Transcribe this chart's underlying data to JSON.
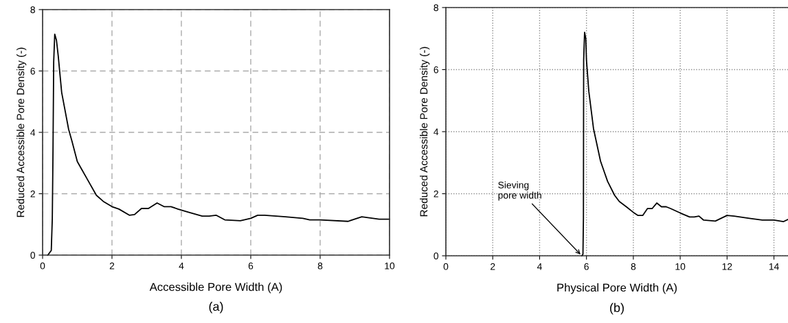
{
  "chart_data": [
    {
      "type": "line",
      "title": "(a)",
      "xlabel": "Accessible Pore Width (A)",
      "ylabel": "Reduced Accessible Pore Density (-)",
      "xlim": [
        0,
        10
      ],
      "xticks": [
        0,
        2,
        4,
        6,
        8,
        10
      ],
      "ylim": [
        0,
        8
      ],
      "yticks": [
        0,
        2,
        4,
        6,
        8
      ],
      "grid": true,
      "line_style": "solid",
      "marker": "none",
      "series": [
        {
          "color": "#000000",
          "x": [
            0.15,
            0.25,
            0.28,
            0.3,
            0.32,
            0.35,
            0.4,
            0.45,
            0.55,
            0.75,
            0.85,
            1.0,
            1.1,
            1.3,
            1.55,
            1.75,
            2.0,
            2.2,
            2.5,
            2.65,
            2.85,
            3.05,
            3.3,
            3.5,
            3.7,
            3.9,
            4.2,
            4.6,
            4.8,
            5.0,
            5.25,
            5.7,
            6.0,
            6.2,
            6.4,
            7.0,
            7.5,
            7.7,
            8.0,
            8.8,
            9.2,
            9.7,
            10.0
          ],
          "values": [
            0,
            0.15,
            1.2,
            3.4,
            6.3,
            7.2,
            7.0,
            6.5,
            5.3,
            4.1,
            3.7,
            3.05,
            2.85,
            2.45,
            1.95,
            1.75,
            1.58,
            1.5,
            1.3,
            1.32,
            1.52,
            1.52,
            1.7,
            1.58,
            1.58,
            1.5,
            1.4,
            1.27,
            1.27,
            1.3,
            1.15,
            1.12,
            1.2,
            1.3,
            1.3,
            1.25,
            1.2,
            1.15,
            1.15,
            1.1,
            1.25,
            1.17,
            1.17
          ]
        }
      ]
    },
    {
      "type": "line",
      "title": "(b)",
      "xlabel": "Physical Pore Width (A)",
      "ylabel": "Reduced Accessible Pore Density (-)",
      "xlim": [
        0,
        14.6
      ],
      "xticks": [
        0,
        2,
        4,
        6,
        8,
        10,
        12,
        14
      ],
      "ylim": [
        0,
        8
      ],
      "yticks": [
        0,
        2,
        4,
        6,
        8
      ],
      "grid": true,
      "line_style": "solid",
      "marker": "none",
      "annotations": [
        {
          "text": "Sieving\npore width",
          "x": 5.8,
          "y": 0
        }
      ],
      "series": [
        {
          "color": "#000000",
          "x": [
            5.8,
            5.85,
            5.87,
            5.88,
            5.92,
            5.97,
            6.0,
            6.1,
            6.3,
            6.6,
            6.9,
            7.2,
            7.4,
            7.7,
            8.0,
            8.2,
            8.4,
            8.6,
            8.8,
            9.0,
            9.2,
            9.4,
            9.6,
            10.0,
            10.4,
            10.6,
            10.8,
            11.0,
            11.5,
            12.0,
            12.3,
            13.0,
            13.5,
            14.0,
            14.4,
            14.6
          ],
          "values": [
            0,
            0.05,
            1.2,
            6.3,
            7.2,
            7.0,
            6.3,
            5.3,
            4.1,
            3.05,
            2.4,
            1.95,
            1.75,
            1.58,
            1.4,
            1.3,
            1.3,
            1.52,
            1.52,
            1.7,
            1.58,
            1.58,
            1.52,
            1.38,
            1.25,
            1.25,
            1.28,
            1.15,
            1.12,
            1.3,
            1.28,
            1.2,
            1.15,
            1.15,
            1.1,
            1.17
          ]
        }
      ]
    }
  ]
}
